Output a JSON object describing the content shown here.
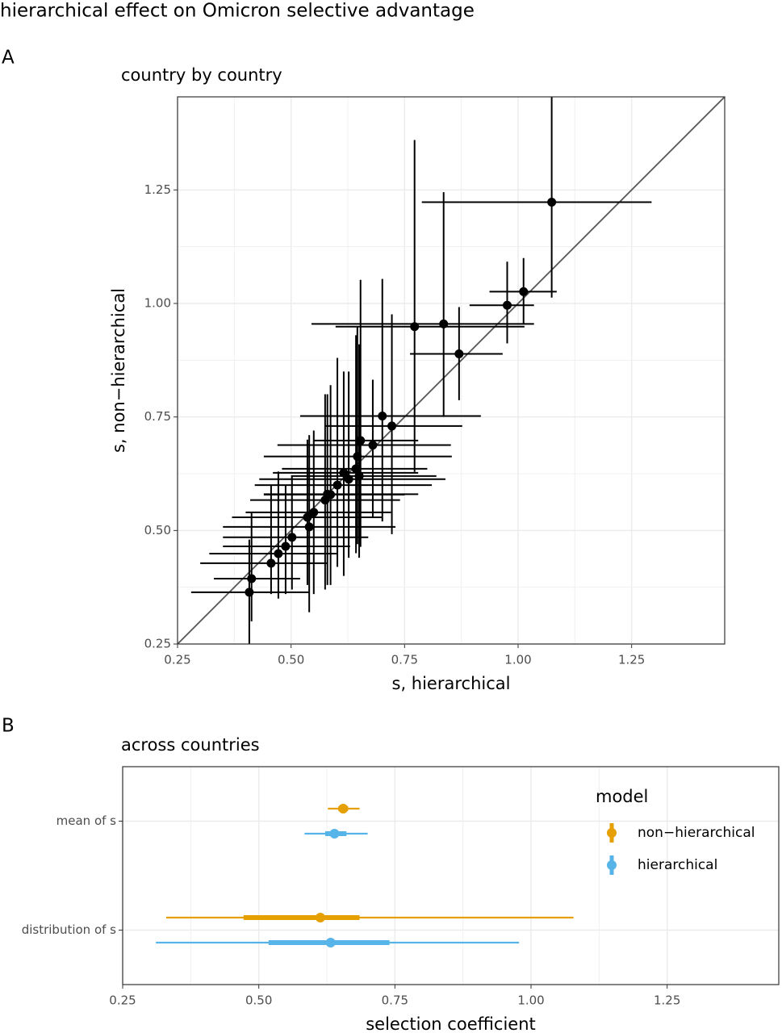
{
  "figure_title": "hierarchical effect on Omicron selective advantage",
  "chart_data": [
    {
      "type": "errorbar-scatter",
      "panel_label": "A",
      "subtitle": "country by country",
      "x_label": "s, hierarchical",
      "y_label": "s, non−hierarchical",
      "xlim": [
        0.25,
        1.455
      ],
      "ylim": [
        0.25,
        1.455
      ],
      "xticks": [
        0.25,
        {
          "value": 0.5,
          "label": "0.50"
        },
        0.75,
        {
          "value": 1,
          "label": "1.00"
        },
        1.25
      ],
      "yticks": [
        0.25,
        {
          "value": 0.5,
          "label": "0.50"
        },
        0.75,
        {
          "value": 1,
          "label": "1.00"
        },
        1.25
      ],
      "grid": true,
      "identity_line": true,
      "color": "#000000",
      "points": [
        {
          "x": 1.074,
          "y": 1.223,
          "x_low": 0.788,
          "x_high": 1.294,
          "y_low": 1.013,
          "y_high": 1.455
        },
        {
          "x": 1.012,
          "y": 1.026,
          "x_low": 0.937,
          "x_high": 1.085,
          "y_low": 0.955,
          "y_high": 1.1
        },
        {
          "x": 0.976,
          "y": 0.996,
          "x_low": 0.893,
          "x_high": 1.035,
          "y_low": 0.912,
          "y_high": 1.092
        },
        {
          "x": 0.836,
          "y": 0.955,
          "x_low": 0.545,
          "x_high": 1.035,
          "y_low": 0.75,
          "y_high": 1.245
        },
        {
          "x": 0.772,
          "y": 0.949,
          "x_low": 0.598,
          "x_high": 1.014,
          "y_low": 0.629,
          "y_high": 1.36
        },
        {
          "x": 0.87,
          "y": 0.889,
          "x_low": 0.762,
          "x_high": 0.966,
          "y_low": 0.787,
          "y_high": 0.992
        },
        {
          "x": 0.701,
          "y": 0.752,
          "x_low": 0.52,
          "x_high": 0.918,
          "y_low": 0.52,
          "y_high": 1.054
        },
        {
          "x": 0.722,
          "y": 0.73,
          "x_low": 0.575,
          "x_high": 0.877,
          "y_low": 0.492,
          "y_high": 0.976
        },
        {
          "x": 0.68,
          "y": 0.688,
          "x_low": 0.47,
          "x_high": 0.852,
          "y_low": 0.529,
          "y_high": 0.832
        },
        {
          "x": 0.653,
          "y": 0.698,
          "x_low": 0.55,
          "x_high": 0.78,
          "y_low": 0.464,
          "y_high": 1.052
        },
        {
          "x": 0.646,
          "y": 0.663,
          "x_low": 0.44,
          "x_high": 0.854,
          "y_low": 0.47,
          "y_high": 0.95
        },
        {
          "x": 0.643,
          "y": 0.636,
          "x_low": 0.48,
          "x_high": 0.8,
          "y_low": 0.45,
          "y_high": 0.93
        },
        {
          "x": 0.627,
          "y": 0.613,
          "x_low": 0.43,
          "x_high": 0.84,
          "y_low": 0.44,
          "y_high": 0.85
        },
        {
          "x": 0.616,
          "y": 0.627,
          "x_low": 0.46,
          "x_high": 0.78,
          "y_low": 0.4,
          "y_high": 0.85
        },
        {
          "x": 0.602,
          "y": 0.6,
          "x_low": 0.42,
          "x_high": 0.81,
          "y_low": 0.42,
          "y_high": 0.88
        },
        {
          "x": 0.587,
          "y": 0.579,
          "x_low": 0.44,
          "x_high": 0.75,
          "y_low": 0.38,
          "y_high": 0.82
        },
        {
          "x": 0.575,
          "y": 0.567,
          "x_low": 0.41,
          "x_high": 0.74,
          "y_low": 0.37,
          "y_high": 0.8
        },
        {
          "x": 0.65,
          "y": 0.62,
          "x_low": 0.5,
          "x_high": 0.82,
          "y_low": 0.44,
          "y_high": 0.91
        },
        {
          "x": 0.58,
          "y": 0.58,
          "x_low": 0.44,
          "x_high": 0.78,
          "y_low": 0.38,
          "y_high": 0.8
        },
        {
          "x": 0.55,
          "y": 0.54,
          "x_low": 0.4,
          "x_high": 0.72,
          "y_low": 0.36,
          "y_high": 0.72
        },
        {
          "x": 0.536,
          "y": 0.529,
          "x_low": 0.37,
          "x_high": 0.7,
          "y_low": 0.38,
          "y_high": 0.7
        },
        {
          "x": 0.54,
          "y": 0.508,
          "x_low": 0.35,
          "x_high": 0.73,
          "y_low": 0.32,
          "y_high": 0.71
        },
        {
          "x": 0.502,
          "y": 0.485,
          "x_low": 0.35,
          "x_high": 0.67,
          "y_low": 0.37,
          "y_high": 0.62
        },
        {
          "x": 0.488,
          "y": 0.465,
          "x_low": 0.35,
          "x_high": 0.63,
          "y_low": 0.36,
          "y_high": 0.6
        },
        {
          "x": 0.472,
          "y": 0.449,
          "x_low": 0.32,
          "x_high": 0.6,
          "y_low": 0.35,
          "y_high": 0.63
        },
        {
          "x": 0.456,
          "y": 0.428,
          "x_low": 0.3,
          "x_high": 0.58,
          "y_low": 0.36,
          "y_high": 0.6
        },
        {
          "x": 0.413,
          "y": 0.394,
          "x_low": 0.33,
          "x_high": 0.52,
          "y_low": 0.3,
          "y_high": 0.54
        },
        {
          "x": 0.408,
          "y": 0.364,
          "x_low": 0.28,
          "x_high": 0.54,
          "y_low": 0.25,
          "y_high": 0.48
        }
      ]
    },
    {
      "type": "pointinterval",
      "panel_label": "B",
      "subtitle": "across countries",
      "x_label": "selection coefficient",
      "categories": [
        "mean of s",
        "distribution of s"
      ],
      "xlim": [
        0.25,
        1.455
      ],
      "xticks": [
        0.25,
        {
          "value": 0.5,
          "label": "0.50"
        },
        0.75,
        {
          "value": 1,
          "label": "1.00"
        },
        1.25
      ],
      "grid": true,
      "legend_title": "model",
      "legend_position": "top-right",
      "series": [
        {
          "name": "non−hierarchical",
          "color": "#E69F00",
          "values": [
            0.655,
            0.613
          ],
          "inner_low": [
            0.646,
            0.472
          ],
          "inner_high": [
            0.664,
            0.685
          ],
          "outer_low": [
            0.627,
            0.33
          ],
          "outer_high": [
            0.685,
            1.078
          ]
        },
        {
          "name": "hierarchical",
          "color": "#56B4E9",
          "values": [
            0.639,
            0.632
          ],
          "inner_low": [
            0.622,
            0.518
          ],
          "inner_high": [
            0.661,
            0.74
          ],
          "outer_low": [
            0.584,
            0.311
          ],
          "outer_high": [
            0.7,
            0.978
          ]
        }
      ]
    }
  ]
}
